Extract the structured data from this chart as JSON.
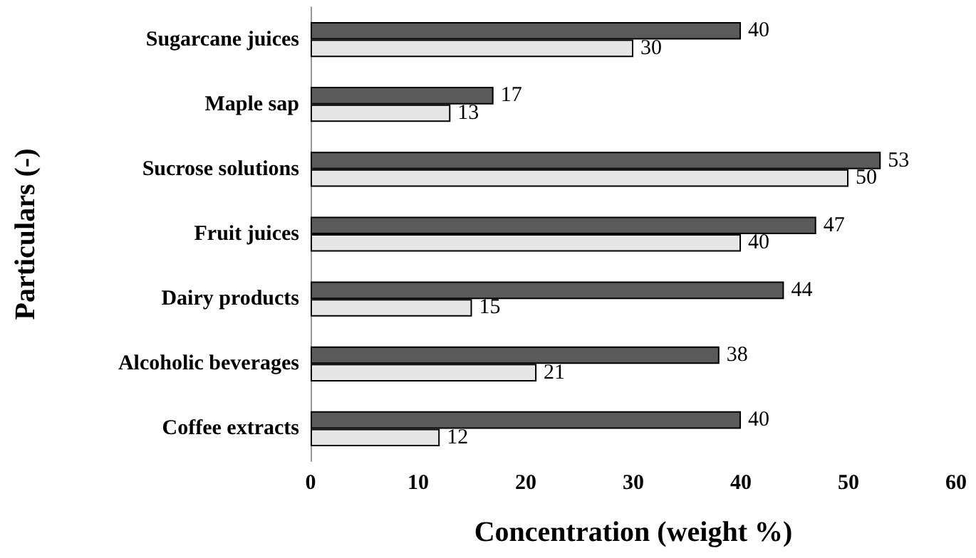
{
  "chart_data": {
    "type": "bar",
    "orientation": "horizontal",
    "xlabel": "Concentration (weight %)",
    "ylabel": "Particulars (-)",
    "categories": [
      "Sugarcane juices",
      "Maple sap",
      "Sucrose solutions",
      "Fruit juices",
      "Dairy products",
      "Alcoholic beverages",
      "Coffee extracts"
    ],
    "series": [
      {
        "color": "#5a5a5a",
        "values": [
          40,
          17,
          53,
          47,
          44,
          38,
          40
        ]
      },
      {
        "color": "#e6e6e6",
        "values": [
          30,
          13,
          50,
          40,
          15,
          21,
          12
        ]
      }
    ],
    "xlim": [
      0,
      60
    ],
    "xticks": [
      0,
      10,
      20,
      30,
      40,
      50,
      60
    ],
    "data_labels": true
  }
}
